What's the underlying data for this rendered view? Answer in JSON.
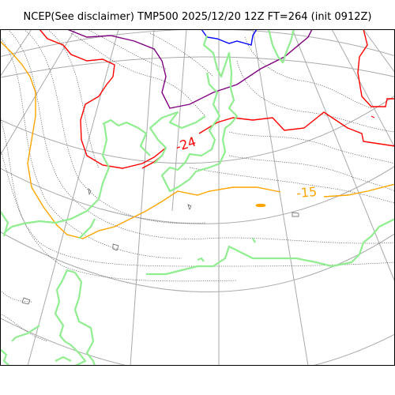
{
  "title": "NCEP(See disclaimer) TMP500 2025/12/20 12Z FT=264 (init 0912Z)",
  "map": {
    "field": "TMP500",
    "contour_labels": [
      {
        "text": "-24",
        "color": "#ff0000"
      },
      {
        "text": "-15",
        "color": "#ffa500"
      }
    ],
    "colors": {
      "coastline": "#90ee90",
      "graticule": "#aaaaaa",
      "isotherm_dotted": "#555555",
      "isotherm_red": "#ff0000",
      "isotherm_orange": "#ffa500",
      "isotherm_purple": "#800080",
      "isotherm_blue": "#0000ff"
    }
  }
}
